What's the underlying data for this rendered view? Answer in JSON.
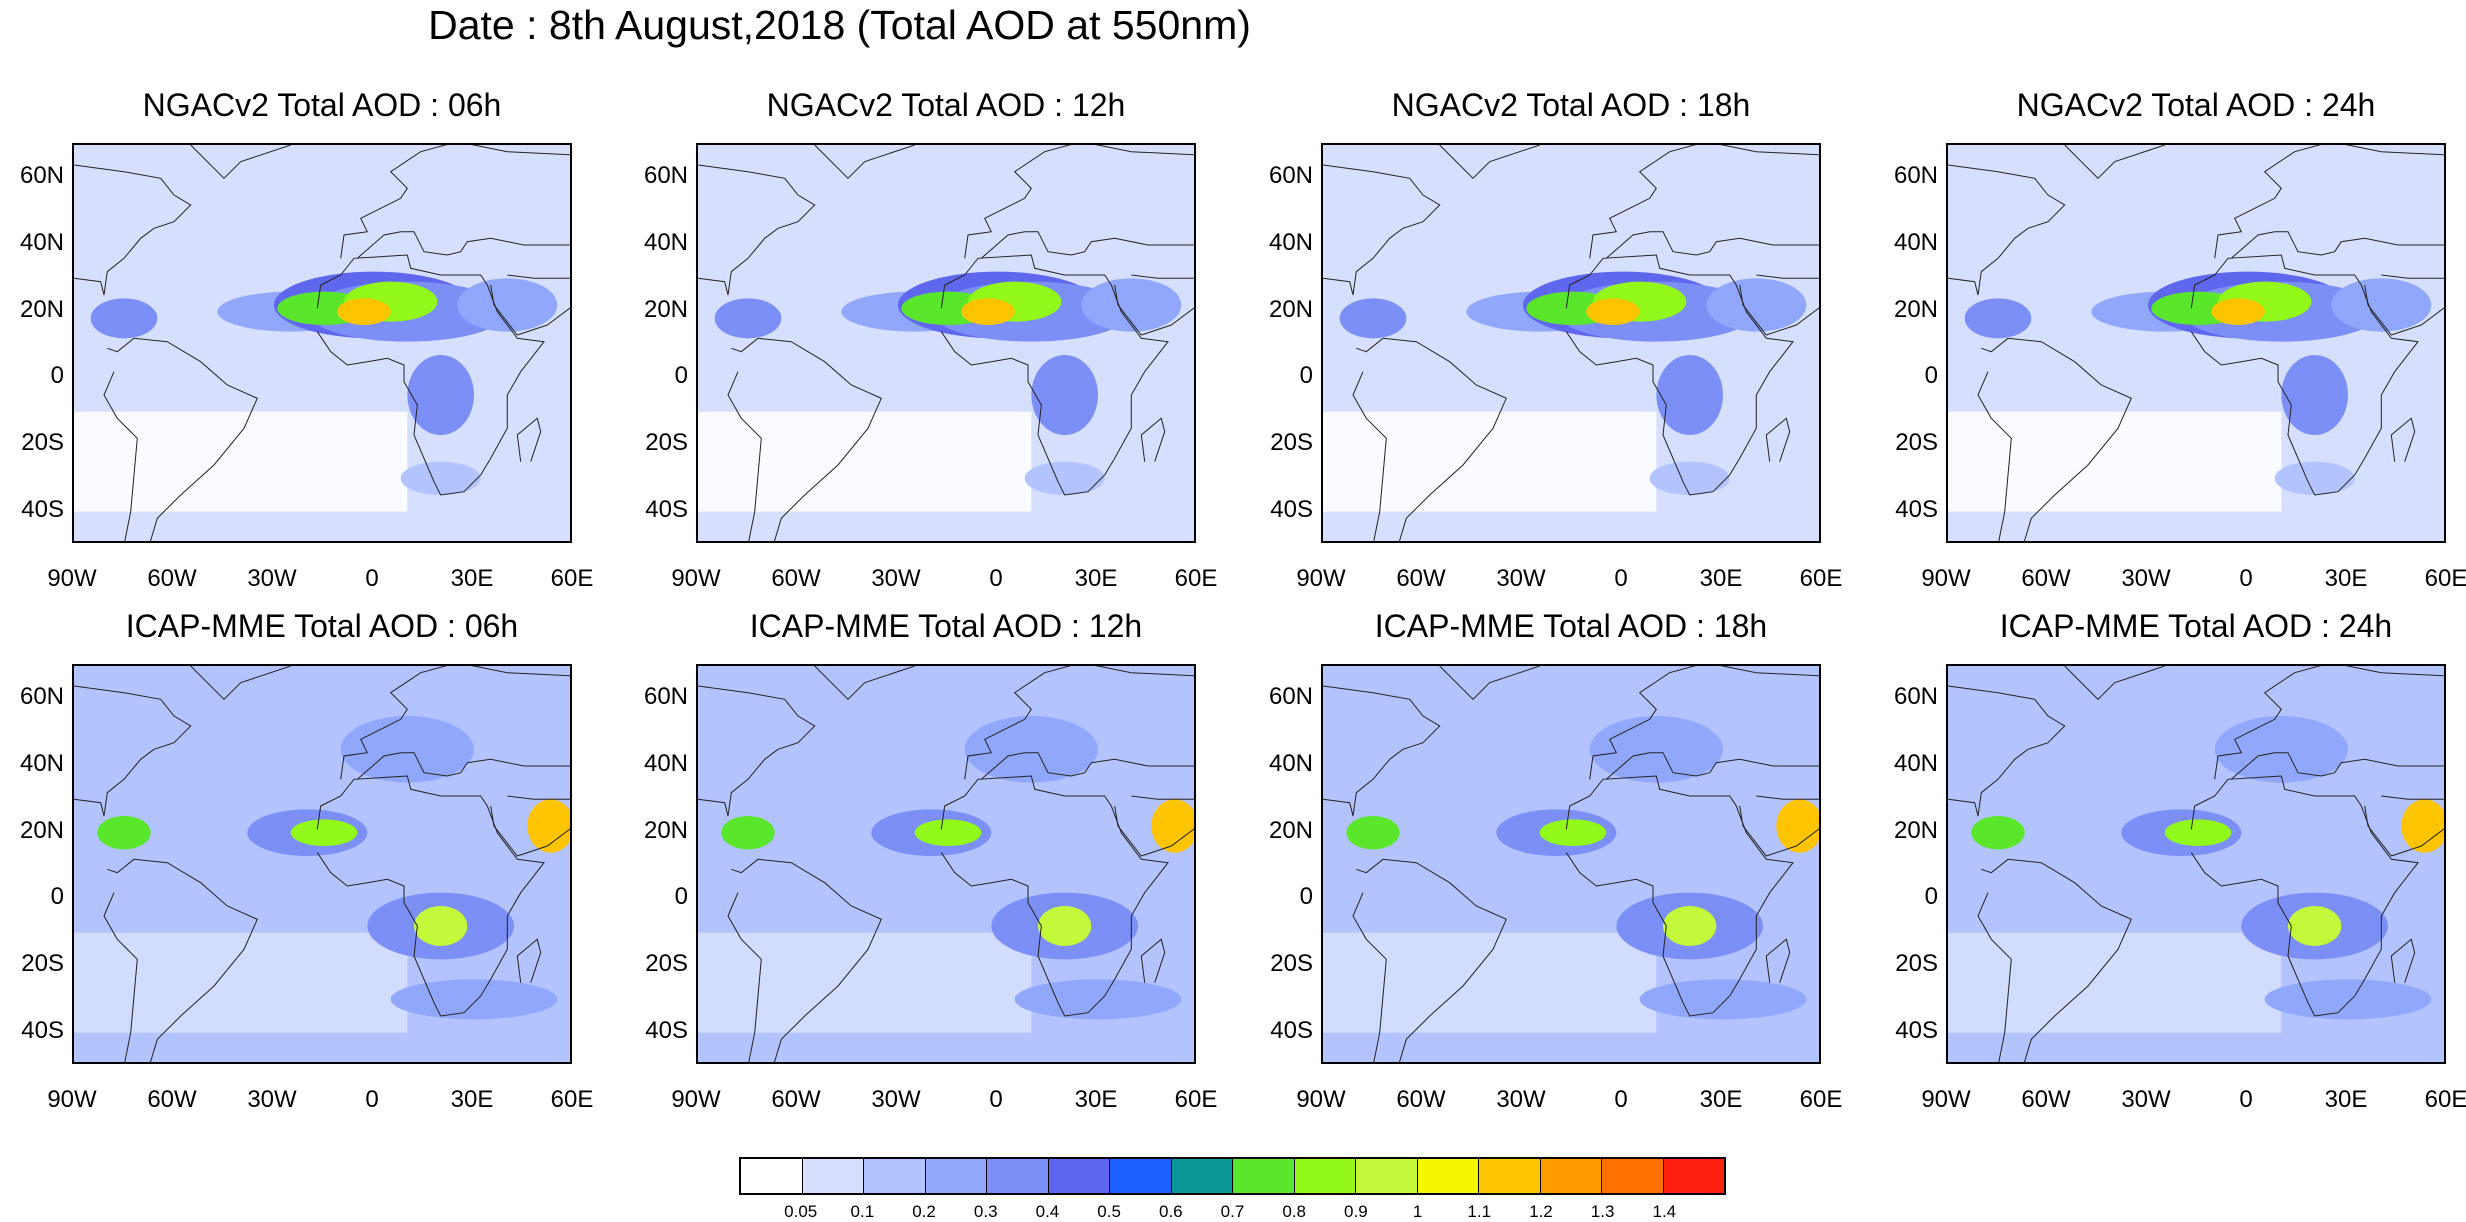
{
  "title": "Date : 8th August,2018 (Total AOD at 550nm)",
  "lat_labels": [
    "60N",
    "40N",
    "20N",
    "0",
    "20S",
    "40S"
  ],
  "lon_labels": [
    "90W",
    "60W",
    "30W",
    "0",
    "30E",
    "60E"
  ],
  "panels": [
    {
      "model": "NGACv2",
      "hour": "06h",
      "title": "NGACv2 Total AOD : 06h"
    },
    {
      "model": "NGACv2",
      "hour": "12h",
      "title": "NGACv2 Total AOD : 12h"
    },
    {
      "model": "NGACv2",
      "hour": "18h",
      "title": "NGACv2 Total AOD : 18h"
    },
    {
      "model": "NGACv2",
      "hour": "24h",
      "title": "NGACv2 Total AOD : 24h"
    },
    {
      "model": "ICAP-MME",
      "hour": "06h",
      "title": "ICAP-MME Total AOD : 06h"
    },
    {
      "model": "ICAP-MME",
      "hour": "12h",
      "title": "ICAP-MME Total AOD : 12h"
    },
    {
      "model": "ICAP-MME",
      "hour": "18h",
      "title": "ICAP-MME Total AOD : 18h"
    },
    {
      "model": "ICAP-MME",
      "hour": "24h",
      "title": "ICAP-MME Total AOD : 24h"
    }
  ],
  "colorbar": {
    "labels": [
      "0.05",
      "0.1",
      "0.2",
      "0.3",
      "0.4",
      "0.5",
      "0.6",
      "0.7",
      "0.8",
      "0.9",
      "1",
      "1.1",
      "1.2",
      "1.3",
      "1.4"
    ],
    "colors": [
      "#ffffff",
      "#d6e0fe",
      "#b2c3fd",
      "#90a7fb",
      "#7b8ff6",
      "#5e67ee",
      "#1b5fff",
      "#0b9696",
      "#5ae62a",
      "#92f81a",
      "#c4f83a",
      "#f6f600",
      "#fec400",
      "#fe9c00",
      "#fe7000",
      "#fe2010"
    ]
  }
}
